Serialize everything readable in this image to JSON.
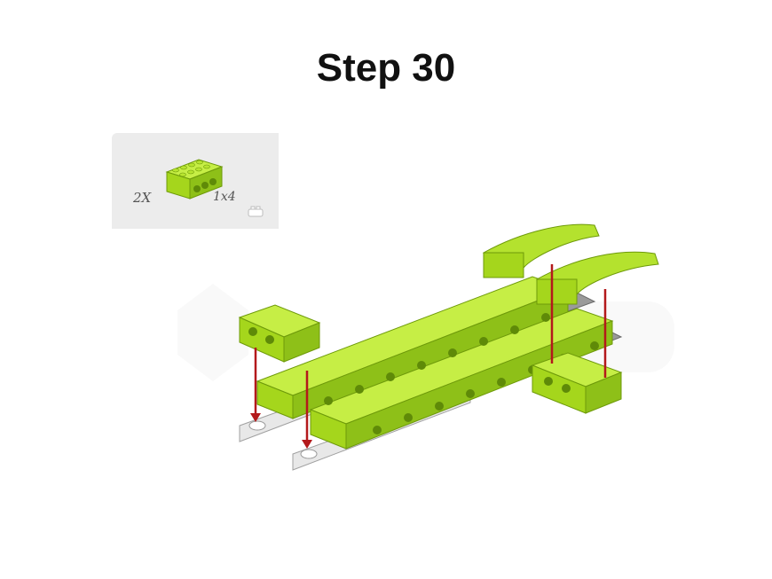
{
  "page": {
    "title": "Step 30"
  },
  "parts_list": {
    "quantity": "2X",
    "size": "1x4",
    "part_color": "#a5d61c"
  },
  "model": {
    "brick_color": "#a5d61c",
    "brick_shade": "#7fae0e",
    "plate_color": "#d9d9d9",
    "dark_plate_color": "#8c8c8c",
    "arrow_color": "#b3191b"
  }
}
